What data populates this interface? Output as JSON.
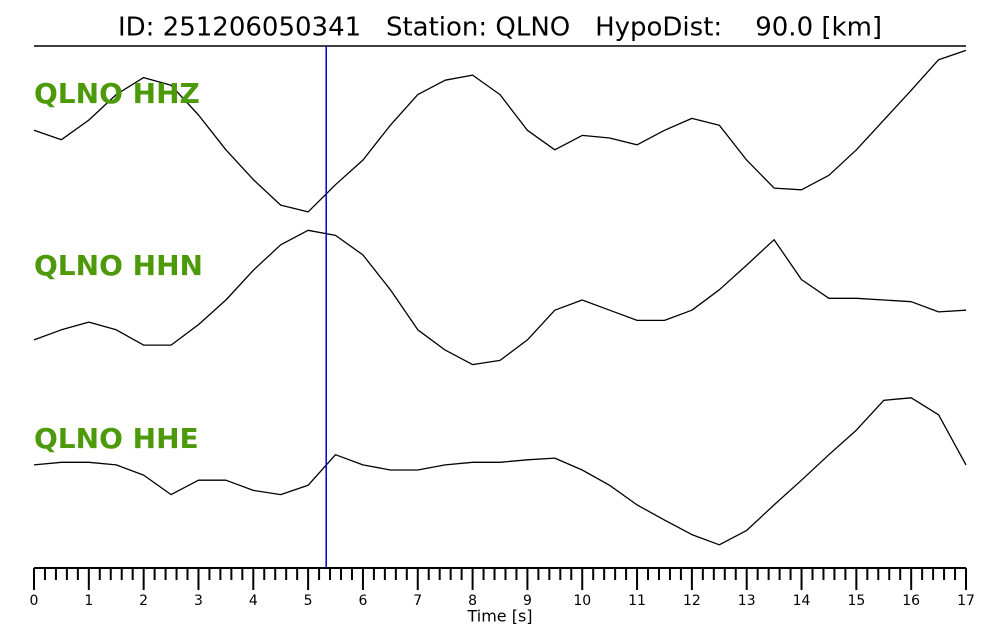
{
  "chart_data": {
    "type": "seismogram",
    "title": "ID: 251206050341   Station: QLNO   HypoDist:    90.0 [km]",
    "xlabel": "Time [s]",
    "xlim": [
      0,
      17
    ],
    "xticks": [
      0,
      1,
      2,
      3,
      4,
      5,
      6,
      7,
      8,
      9,
      10,
      11,
      12,
      13,
      14,
      15,
      16,
      17
    ],
    "minor_ticks_per_major": 5,
    "ylim": [
      -1,
      1
    ],
    "pick_time": 5.33,
    "pick_color": "#0000cc",
    "label_color": "#4c9a0a",
    "x": [
      0,
      0.5,
      1,
      1.5,
      2,
      2.5,
      3,
      3.5,
      4,
      4.5,
      5,
      5.5,
      6,
      6.5,
      7,
      7.5,
      8,
      8.5,
      9,
      9.5,
      10,
      10.5,
      11,
      11.5,
      12,
      12.5,
      13,
      13.5,
      14,
      14.5,
      15,
      15.5,
      16,
      16.5,
      17
    ],
    "series": [
      {
        "name": "QLNO HHZ",
        "color": "#000000",
        "values": [
          0.02,
          -0.09,
          0.14,
          0.44,
          0.64,
          0.55,
          0.2,
          -0.21,
          -0.56,
          -0.86,
          -0.94,
          -0.62,
          -0.33,
          0.08,
          0.44,
          0.61,
          0.67,
          0.44,
          0.02,
          -0.21,
          -0.04,
          -0.07,
          -0.15,
          0.02,
          0.16,
          0.08,
          -0.33,
          -0.66,
          -0.68,
          -0.51,
          -0.21,
          0.14,
          0.49,
          0.85,
          0.96
        ]
      },
      {
        "name": "QLNO HHN",
        "color": "#000000",
        "values": [
          -0.47,
          -0.35,
          -0.26,
          -0.35,
          -0.53,
          -0.53,
          -0.29,
          0,
          0.35,
          0.65,
          0.82,
          0.76,
          0.53,
          0.12,
          -0.35,
          -0.59,
          -0.76,
          -0.71,
          -0.47,
          -0.12,
          0,
          -0.12,
          -0.24,
          -0.24,
          -0.12,
          0.12,
          0.41,
          0.71,
          0.24,
          0.02,
          0.02,
          0,
          -0.02,
          -0.14,
          -0.12
        ]
      },
      {
        "name": "QLNO HHE",
        "color": "#000000",
        "values": [
          0.06,
          0.09,
          0.09,
          0.06,
          -0.06,
          -0.29,
          -0.12,
          -0.12,
          -0.24,
          -0.29,
          -0.18,
          0.18,
          0.06,
          0,
          0,
          0.06,
          0.09,
          0.09,
          0.12,
          0.14,
          0,
          -0.18,
          -0.41,
          -0.59,
          -0.76,
          -0.88,
          -0.71,
          -0.41,
          -0.12,
          0.18,
          0.47,
          0.82,
          0.85,
          0.65,
          0.06
        ]
      }
    ]
  }
}
